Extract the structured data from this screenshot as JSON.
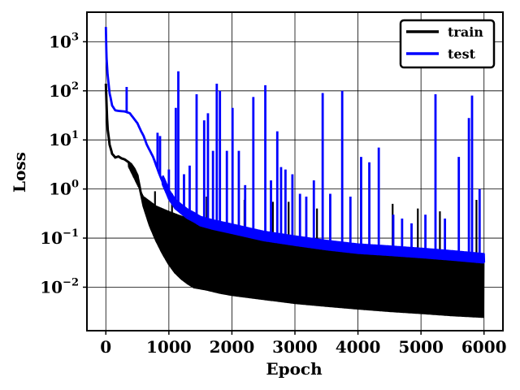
{
  "chart_data": {
    "type": "line",
    "title": "",
    "xlabel": "Epoch",
    "ylabel": "Loss",
    "xlim": [
      -300,
      6300
    ],
    "ylim": [
      0.0013,
      4000
    ],
    "y_scale": "log",
    "grid": true,
    "legend_position": "top-right",
    "x_ticks": [
      0,
      1000,
      2000,
      3000,
      4000,
      5000,
      6000
    ],
    "x_tick_labels": [
      "0",
      "1000",
      "2000",
      "3000",
      "4000",
      "5000",
      "6000"
    ],
    "y_ticks": [
      {
        "value": 0.01,
        "base": "10",
        "exp": "−2"
      },
      {
        "value": 0.1,
        "base": "10",
        "exp": "−1"
      },
      {
        "value": 1,
        "base": "10",
        "exp": "0"
      },
      {
        "value": 10,
        "base": "10",
        "exp": "1"
      },
      {
        "value": 100,
        "base": "10",
        "exp": "2"
      },
      {
        "value": 1000,
        "base": "10",
        "exp": "3"
      }
    ],
    "series": [
      {
        "name": "train",
        "color": "#000000",
        "baseline": {
          "x": [
            0,
            25,
            60,
            100,
            150,
            200,
            250,
            300,
            350,
            400,
            450,
            500,
            550,
            600,
            700,
            800,
            900,
            1000,
            1100,
            1200,
            1300,
            1400,
            1500,
            1600,
            1800,
            2000,
            2500,
            3000,
            3500,
            4000,
            4500,
            5000,
            5500,
            6000
          ],
          "y": [
            140,
            18,
            8,
            5.2,
            4.4,
            4.6,
            4.2,
            4,
            3.6,
            3.2,
            2.6,
            1.9,
            0.9,
            0.45,
            0.18,
            0.09,
            0.05,
            0.03,
            0.02,
            0.015,
            0.012,
            0.01,
            0.0095,
            0.009,
            0.0078,
            0.007,
            0.0058,
            0.0048,
            0.0042,
            0.0037,
            0.0033,
            0.003,
            0.0027,
            0.0025
          ]
        },
        "oscillation_upper": {
          "x": [
            0,
            300,
            500,
            600,
            800,
            1000,
            1200,
            1500,
            2000,
            2500,
            3000,
            3500,
            4000,
            4500,
            5000,
            5500,
            6000
          ],
          "y": [
            140,
            4,
            1.2,
            0.7,
            0.45,
            0.35,
            0.28,
            0.22,
            0.15,
            0.12,
            0.1,
            0.08,
            0.07,
            0.06,
            0.05,
            0.045,
            0.04
          ]
        },
        "spikes": [
          {
            "x": 780,
            "y": 0.9
          },
          {
            "x": 1050,
            "y": 0.8
          },
          {
            "x": 1600,
            "y": 0.7
          },
          {
            "x": 2200,
            "y": 0.6
          },
          {
            "x": 2650,
            "y": 0.55
          },
          {
            "x": 2900,
            "y": 0.55
          },
          {
            "x": 3350,
            "y": 0.4
          },
          {
            "x": 3750,
            "y": 0.3
          },
          {
            "x": 4050,
            "y": 0.6
          },
          {
            "x": 4550,
            "y": 0.5
          },
          {
            "x": 4950,
            "y": 0.4
          },
          {
            "x": 5300,
            "y": 0.35
          },
          {
            "x": 5600,
            "y": 0.3
          },
          {
            "x": 5880,
            "y": 0.6
          }
        ]
      },
      {
        "name": "test",
        "color": "#0000ff",
        "baseline": {
          "x": [
            0,
            10,
            30,
            60,
            100,
            150,
            200,
            300,
            380,
            420,
            500,
            560,
            600,
            650,
            700,
            750,
            800,
            850,
            900,
            950,
            1000,
            1100,
            1200,
            1300,
            1400,
            1500,
            1700,
            2000,
            2500,
            3000,
            3500,
            4000,
            4500,
            5000,
            5500,
            6000
          ],
          "y": [
            2000,
            500,
            200,
            90,
            50,
            40,
            39,
            38,
            35,
            30,
            22,
            15,
            12,
            8,
            6,
            4.5,
            3,
            2,
            1.4,
            1,
            0.7,
            0.45,
            0.35,
            0.28,
            0.24,
            0.2,
            0.17,
            0.14,
            0.1,
            0.08,
            0.065,
            0.055,
            0.05,
            0.045,
            0.04,
            0.035
          ]
        },
        "spikes": [
          {
            "x": 330,
            "y": 120
          },
          {
            "x": 820,
            "y": 14
          },
          {
            "x": 860,
            "y": 12
          },
          {
            "x": 1000,
            "y": 2.5
          },
          {
            "x": 1110,
            "y": 45
          },
          {
            "x": 1150,
            "y": 250
          },
          {
            "x": 1240,
            "y": 2
          },
          {
            "x": 1330,
            "y": 3
          },
          {
            "x": 1440,
            "y": 85
          },
          {
            "x": 1560,
            "y": 25
          },
          {
            "x": 1620,
            "y": 35
          },
          {
            "x": 1700,
            "y": 6
          },
          {
            "x": 1760,
            "y": 140
          },
          {
            "x": 1810,
            "y": 100
          },
          {
            "x": 1920,
            "y": 6
          },
          {
            "x": 2010,
            "y": 45
          },
          {
            "x": 2110,
            "y": 6
          },
          {
            "x": 2210,
            "y": 1.2
          },
          {
            "x": 2340,
            "y": 75
          },
          {
            "x": 2530,
            "y": 130
          },
          {
            "x": 2620,
            "y": 1.5
          },
          {
            "x": 2720,
            "y": 15
          },
          {
            "x": 2780,
            "y": 2.8
          },
          {
            "x": 2850,
            "y": 2.5
          },
          {
            "x": 2960,
            "y": 2
          },
          {
            "x": 3080,
            "y": 0.8
          },
          {
            "x": 3180,
            "y": 0.7
          },
          {
            "x": 3300,
            "y": 1.5
          },
          {
            "x": 3440,
            "y": 90
          },
          {
            "x": 3560,
            "y": 0.8
          },
          {
            "x": 3750,
            "y": 100
          },
          {
            "x": 3880,
            "y": 0.7
          },
          {
            "x": 4050,
            "y": 4.5
          },
          {
            "x": 4180,
            "y": 3.5
          },
          {
            "x": 4330,
            "y": 7
          },
          {
            "x": 4560,
            "y": 0.3
          },
          {
            "x": 4700,
            "y": 0.25
          },
          {
            "x": 4850,
            "y": 0.2
          },
          {
            "x": 5070,
            "y": 0.3
          },
          {
            "x": 5230,
            "y": 85
          },
          {
            "x": 5380,
            "y": 0.25
          },
          {
            "x": 5600,
            "y": 4.5
          },
          {
            "x": 5760,
            "y": 28
          },
          {
            "x": 5810,
            "y": 80
          },
          {
            "x": 5930,
            "y": 1
          }
        ]
      }
    ]
  }
}
